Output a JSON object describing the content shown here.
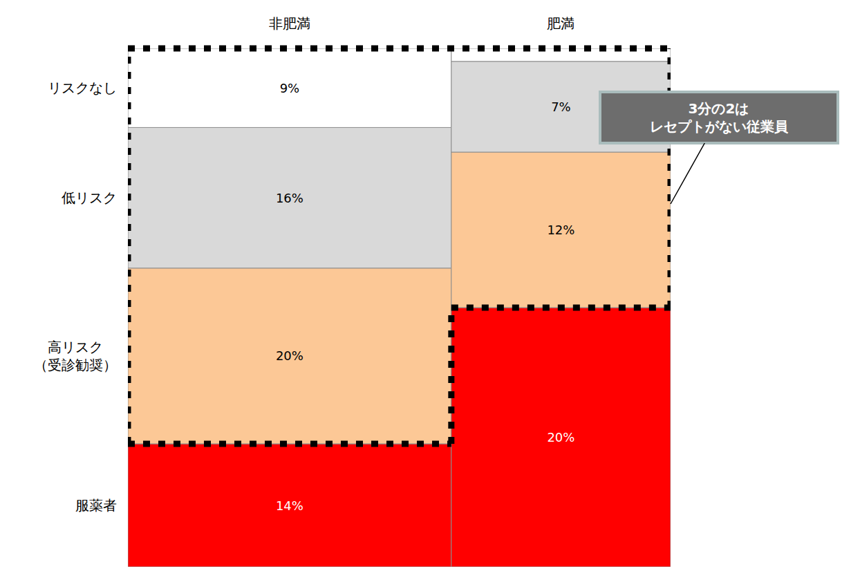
{
  "chart_data": {
    "type": "mosaic",
    "categories": [
      "非肥満",
      "肥満"
    ],
    "series": [
      {
        "name": "リスクなし",
        "color": "#ffffff",
        "values": [
          9,
          1
        ],
        "value_labels": [
          "9%",
          null
        ]
      },
      {
        "name": "低リスク",
        "color": "#d9d9d9",
        "values": [
          16,
          7
        ],
        "value_labels": [
          "16%",
          "7%"
        ]
      },
      {
        "name": "高リスク（受診勧奨）",
        "color": "#fcc896",
        "values": [
          20,
          12
        ],
        "value_labels": [
          "20%",
          "12%"
        ]
      },
      {
        "name": "服薬者",
        "color": "#ff0000",
        "values": [
          14,
          20
        ],
        "value_labels": [
          "14%",
          "20%"
        ]
      }
    ],
    "data_labels": true,
    "tick_labels": false,
    "grid": false,
    "annotations": [
      {
        "text": "3分の2は\nレセプトがない従業員"
      }
    ]
  }
}
